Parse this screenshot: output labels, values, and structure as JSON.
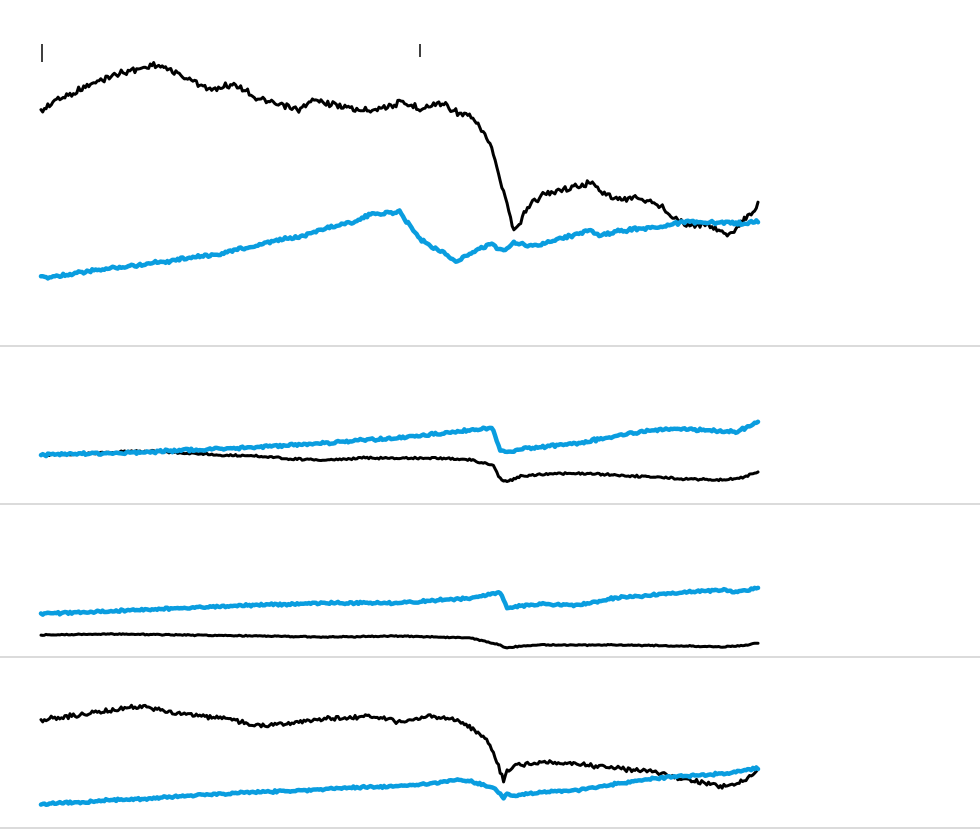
{
  "colors": {
    "black_series": "#000000",
    "blue_series": "#0a9ddf",
    "separator": "#cfcfcf",
    "background": "#ffffff"
  },
  "chart_data": [
    {
      "type": "line",
      "panel": 1,
      "grid": false,
      "legend": "none",
      "x": [
        0,
        0.02,
        0.06,
        0.1,
        0.14,
        0.16,
        0.18,
        0.21,
        0.24,
        0.27,
        0.3,
        0.33,
        0.36,
        0.38,
        0.41,
        0.44,
        0.46,
        0.5,
        0.53,
        0.56,
        0.58,
        0.6,
        0.615,
        0.63,
        0.64,
        0.65,
        0.66,
        0.67,
        0.68,
        0.7,
        0.72,
        0.74,
        0.75,
        0.765,
        0.78,
        0.8,
        0.83,
        0.86,
        0.88,
        0.9,
        0.92,
        0.94,
        0.96,
        0.98,
        0.995,
        1.0
      ],
      "series": [
        {
          "values": [
            112,
            100,
            88,
            75,
            68,
            65,
            70,
            80,
            90,
            83,
            98,
            105,
            110,
            100,
            105,
            110,
            110,
            103,
            108,
            103,
            112,
            118,
            130,
            150,
            180,
            205,
            232,
            220,
            205,
            195,
            190,
            188,
            186,
            182,
            190,
            200,
            197,
            205,
            215,
            225,
            225,
            228,
            235,
            220,
            210,
            205
          ]
        },
        {
          "values": [
            278,
            276,
            272,
            268,
            265,
            262,
            261,
            257,
            255,
            250,
            246,
            240,
            237,
            232,
            226,
            221,
            214,
            212,
            240,
            252,
            262,
            253,
            248,
            244,
            250,
            248,
            242,
            244,
            246,
            244,
            238,
            236,
            233,
            230,
            236,
            232,
            229,
            227,
            224,
            222,
            222,
            223,
            222,
            224,
            222,
            221
          ]
        }
      ]
    },
    {
      "type": "line",
      "panel": 2,
      "grid": false,
      "legend": "none",
      "x": [
        0,
        0.05,
        0.1,
        0.15,
        0.2,
        0.25,
        0.3,
        0.35,
        0.4,
        0.45,
        0.5,
        0.55,
        0.6,
        0.63,
        0.64,
        0.65,
        0.67,
        0.7,
        0.75,
        0.8,
        0.85,
        0.9,
        0.95,
        0.97,
        0.985,
        1.0
      ],
      "series": [
        {
          "values": [
            455,
            454,
            452,
            451,
            453,
            455,
            456,
            459,
            460,
            458,
            458,
            458,
            460,
            465,
            478,
            482,
            476,
            474,
            473,
            475,
            477,
            479,
            480,
            479,
            476,
            472
          ]
        },
        {
          "values": [
            455,
            454,
            453,
            452,
            450,
            449,
            447,
            445,
            443,
            440,
            438,
            434,
            430,
            428,
            450,
            453,
            449,
            447,
            443,
            436,
            430,
            429,
            431,
            432,
            427,
            422
          ]
        }
      ]
    },
    {
      "type": "line",
      "panel": 3,
      "grid": false,
      "legend": "none",
      "x": [
        0,
        0.1,
        0.2,
        0.3,
        0.4,
        0.5,
        0.6,
        0.64,
        0.65,
        0.67,
        0.7,
        0.75,
        0.8,
        0.9,
        0.95,
        0.97,
        0.985,
        1.0
      ],
      "series": [
        {
          "values": [
            635,
            634,
            635,
            636,
            637,
            636,
            638,
            645,
            648,
            646,
            645,
            645,
            645,
            646,
            647,
            646,
            645,
            643
          ]
        },
        {
          "values": [
            614,
            611,
            608,
            605,
            603,
            603,
            598,
            592,
            608,
            606,
            604,
            605,
            598,
            592,
            590,
            592,
            590,
            588
          ]
        }
      ]
    },
    {
      "type": "line",
      "panel": 4,
      "grid": false,
      "legend": "none",
      "x": [
        0,
        0.06,
        0.1,
        0.14,
        0.18,
        0.22,
        0.26,
        0.3,
        0.34,
        0.38,
        0.42,
        0.46,
        0.5,
        0.54,
        0.58,
        0.6,
        0.62,
        0.635,
        0.645,
        0.65,
        0.66,
        0.68,
        0.7,
        0.75,
        0.8,
        0.86,
        0.9,
        0.95,
        0.97,
        0.985,
        1.0
      ],
      "series": [
        {
          "values": [
            720,
            714,
            710,
            706,
            712,
            716,
            718,
            726,
            724,
            720,
            718,
            716,
            722,
            716,
            720,
            728,
            738,
            760,
            780,
            770,
            766,
            764,
            762,
            764,
            768,
            772,
            780,
            786,
            784,
            778,
            770
          ]
        },
        {
          "values": [
            804,
            802,
            800,
            799,
            797,
            795,
            794,
            792,
            791,
            790,
            788,
            787,
            786,
            784,
            780,
            781,
            786,
            790,
            798,
            794,
            796,
            794,
            792,
            790,
            784,
            778,
            776,
            774,
            772,
            770,
            768
          ]
        }
      ]
    }
  ]
}
